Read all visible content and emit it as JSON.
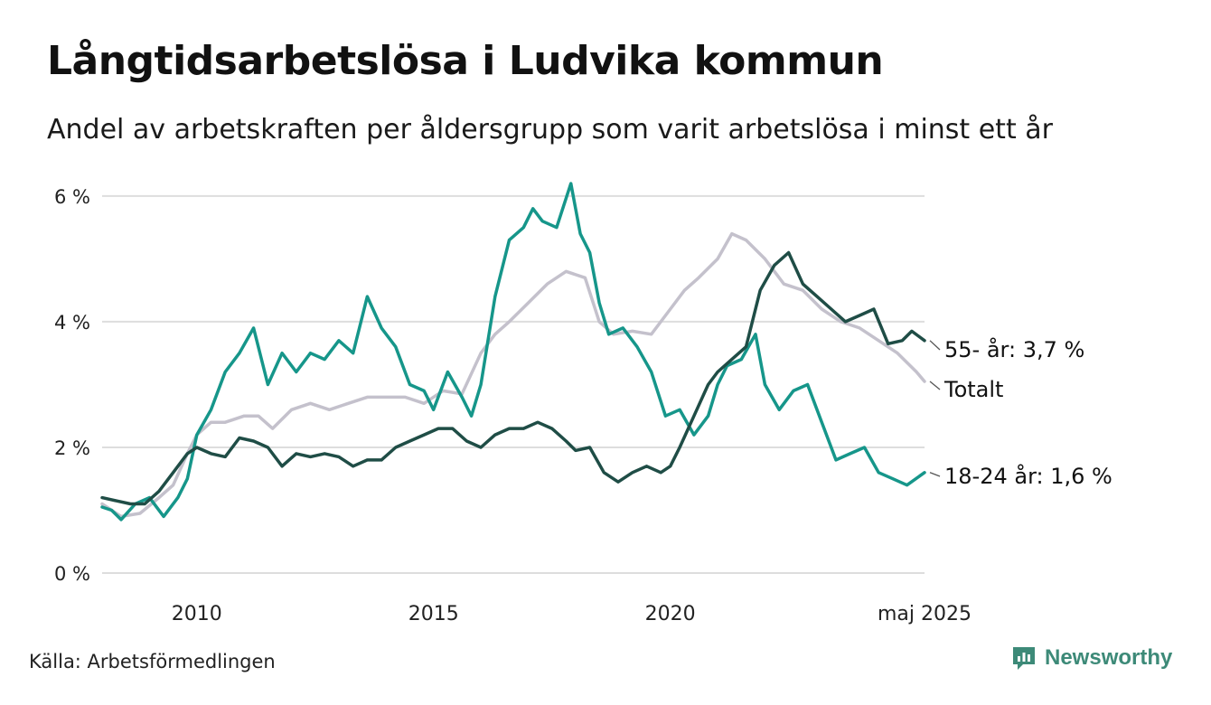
{
  "title": "Långtidsarbetslösa i Ludvika kommun",
  "subtitle": "Andel av arbetskraften per åldersgrupp som varit arbetslösa i minst ett år",
  "source": "Källa: Arbetsförmedlingen",
  "brand": "Newsworthy",
  "colors": {
    "youth": "#16968a",
    "old": "#1f4d46",
    "total": "#c4c1cc",
    "grid": "#dddddd",
    "brand": "#3d8a78"
  },
  "chart_data": {
    "type": "line",
    "title": "Långtidsarbetslösa i Ludvika kommun",
    "subtitle": "Andel av arbetskraften per åldersgrupp som varit arbetslösa i minst ett år",
    "x_range": [
      2008.0,
      2025.37
    ],
    "ylim": [
      0,
      6.2
    ],
    "y_ticks": [
      0,
      2,
      4,
      6
    ],
    "y_tick_labels": [
      "0 %",
      "2 %",
      "4 %",
      "6 %"
    ],
    "x_ticks": [
      2010,
      2015,
      2020,
      2025.37
    ],
    "x_tick_labels": [
      "2010",
      "2015",
      "2020",
      "maj 2025"
    ],
    "grid": "horizontal",
    "legend": "end-of-line labels",
    "end_labels": [
      {
        "series": "55-",
        "text": "55- år: 3,7 %"
      },
      {
        "series": "total",
        "text": "Totalt"
      },
      {
        "series": "18-24",
        "text": "18-24 år: 1,6 %"
      }
    ],
    "series": [
      {
        "key": "total",
        "x": [
          2008.0,
          2008.4,
          2008.8,
          2009.2,
          2009.5,
          2009.8,
          2010.0,
          2010.3,
          2010.6,
          2011.0,
          2011.3,
          2011.6,
          2012.0,
          2012.4,
          2012.8,
          2013.2,
          2013.6,
          2014.0,
          2014.4,
          2014.8,
          2015.2,
          2015.6,
          2016.0,
          2016.3,
          2016.6,
          2017.0,
          2017.4,
          2017.8,
          2018.2,
          2018.5,
          2018.8,
          2019.2,
          2019.6,
          2020.0,
          2020.3,
          2020.6,
          2021.0,
          2021.3,
          2021.6,
          2022.0,
          2022.4,
          2022.8,
          2023.2,
          2023.6,
          2024.0,
          2024.4,
          2024.8,
          2025.2,
          2025.37
        ],
        "y": [
          1.1,
          0.9,
          0.95,
          1.2,
          1.4,
          1.9,
          2.2,
          2.4,
          2.4,
          2.5,
          2.5,
          2.3,
          2.6,
          2.7,
          2.6,
          2.7,
          2.8,
          2.8,
          2.8,
          2.7,
          2.9,
          2.85,
          3.5,
          3.8,
          4.0,
          4.3,
          4.6,
          4.8,
          4.7,
          4.0,
          3.8,
          3.85,
          3.8,
          4.2,
          4.5,
          4.7,
          5.0,
          5.4,
          5.3,
          5.0,
          4.6,
          4.5,
          4.2,
          4.0,
          3.9,
          3.7,
          3.5,
          3.2,
          3.05
        ]
      },
      {
        "key": "18-24",
        "x": [
          2008.0,
          2008.2,
          2008.4,
          2008.7,
          2009.0,
          2009.3,
          2009.6,
          2009.8,
          2010.0,
          2010.3,
          2010.6,
          2010.9,
          2011.2,
          2011.5,
          2011.8,
          2012.1,
          2012.4,
          2012.7,
          2013.0,
          2013.3,
          2013.6,
          2013.9,
          2014.2,
          2014.5,
          2014.8,
          2015.0,
          2015.3,
          2015.6,
          2015.8,
          2016.0,
          2016.3,
          2016.6,
          2016.9,
          2017.1,
          2017.3,
          2017.6,
          2017.9,
          2018.1,
          2018.3,
          2018.5,
          2018.7,
          2019.0,
          2019.3,
          2019.6,
          2019.9,
          2020.2,
          2020.5,
          2020.8,
          2021.0,
          2021.2,
          2021.5,
          2021.8,
          2022.0,
          2022.3,
          2022.6,
          2022.9,
          2023.2,
          2023.5,
          2023.8,
          2024.1,
          2024.4,
          2024.7,
          2025.0,
          2025.37
        ],
        "y": [
          1.05,
          1.0,
          0.85,
          1.1,
          1.2,
          0.9,
          1.2,
          1.5,
          2.2,
          2.6,
          3.2,
          3.5,
          3.9,
          3.0,
          3.5,
          3.2,
          3.5,
          3.4,
          3.7,
          3.5,
          4.4,
          3.9,
          3.6,
          3.0,
          2.9,
          2.6,
          3.2,
          2.8,
          2.5,
          3.0,
          4.4,
          5.3,
          5.5,
          5.8,
          5.6,
          5.5,
          6.2,
          5.4,
          5.1,
          4.3,
          3.8,
          3.9,
          3.6,
          3.2,
          2.5,
          2.6,
          2.2,
          2.5,
          3.0,
          3.3,
          3.4,
          3.8,
          3.0,
          2.6,
          2.9,
          3.0,
          2.4,
          1.8,
          1.9,
          2.0,
          1.6,
          1.5,
          1.4,
          1.6
        ]
      },
      {
        "key": "55-",
        "x": [
          2008.0,
          2008.3,
          2008.6,
          2008.9,
          2009.2,
          2009.5,
          2009.8,
          2010.0,
          2010.3,
          2010.6,
          2010.9,
          2011.2,
          2011.5,
          2011.8,
          2012.1,
          2012.4,
          2012.7,
          2013.0,
          2013.3,
          2013.6,
          2013.9,
          2014.2,
          2014.5,
          2014.8,
          2015.1,
          2015.4,
          2015.7,
          2016.0,
          2016.3,
          2016.6,
          2016.9,
          2017.2,
          2017.5,
          2017.8,
          2018.0,
          2018.3,
          2018.6,
          2018.9,
          2019.2,
          2019.5,
          2019.8,
          2020.0,
          2020.2,
          2020.5,
          2020.8,
          2021.0,
          2021.3,
          2021.6,
          2021.9,
          2022.2,
          2022.5,
          2022.8,
          2023.1,
          2023.4,
          2023.7,
          2024.0,
          2024.3,
          2024.6,
          2024.9,
          2025.1,
          2025.37
        ],
        "y": [
          1.2,
          1.15,
          1.1,
          1.1,
          1.3,
          1.6,
          1.9,
          2.0,
          1.9,
          1.85,
          2.15,
          2.1,
          2.0,
          1.7,
          1.9,
          1.85,
          1.9,
          1.85,
          1.7,
          1.8,
          1.8,
          2.0,
          2.1,
          2.2,
          2.3,
          2.3,
          2.1,
          2.0,
          2.2,
          2.3,
          2.3,
          2.4,
          2.3,
          2.1,
          1.95,
          2.0,
          1.6,
          1.45,
          1.6,
          1.7,
          1.6,
          1.7,
          2.0,
          2.5,
          3.0,
          3.2,
          3.4,
          3.6,
          4.5,
          4.9,
          5.1,
          4.6,
          4.4,
          4.2,
          4.0,
          4.1,
          4.2,
          3.65,
          3.7,
          3.85,
          3.7
        ]
      }
    ]
  }
}
